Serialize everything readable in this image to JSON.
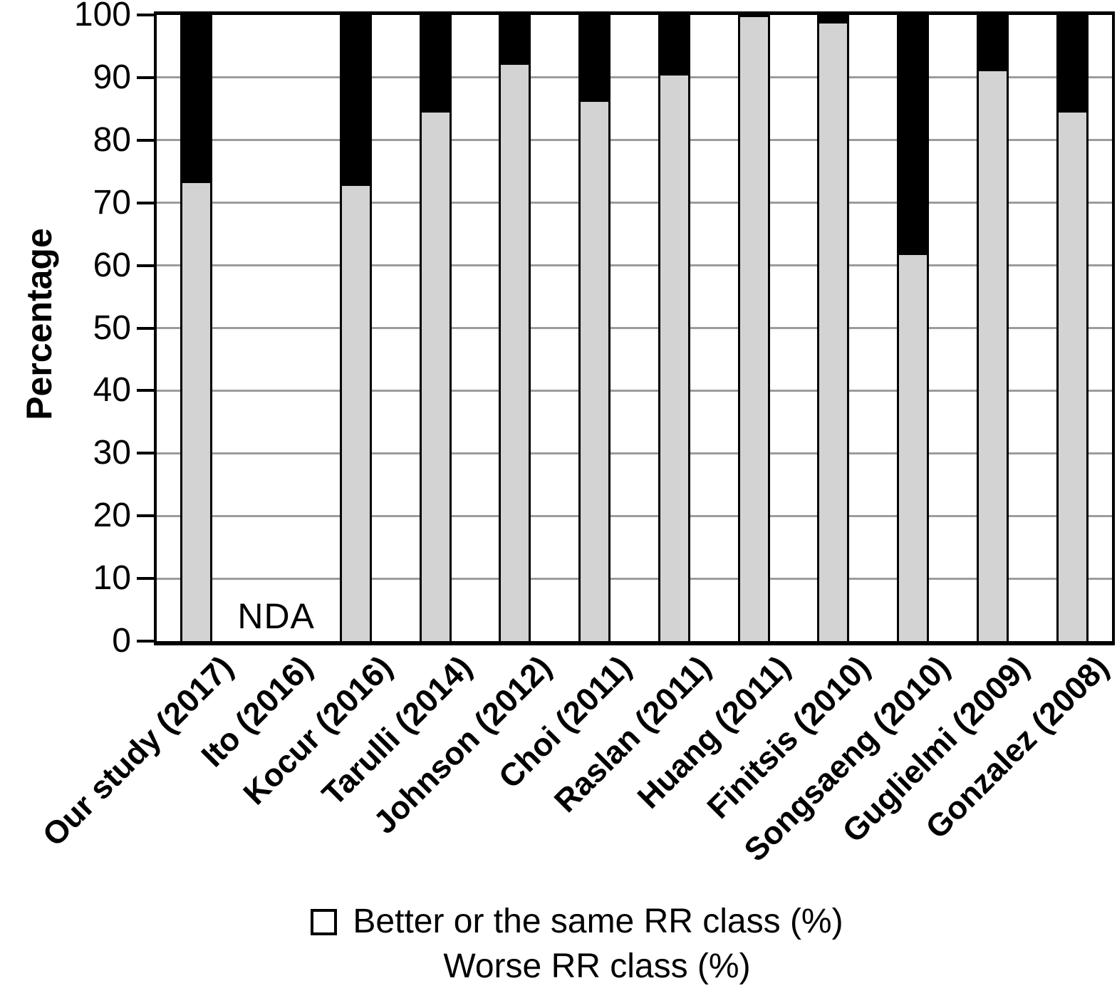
{
  "chart_data": {
    "type": "bar",
    "stacked": true,
    "orientation": "vertical",
    "title": "",
    "xlabel": "",
    "ylabel": "Percentage",
    "ylim": [
      0,
      100
    ],
    "yticks": [
      0,
      10,
      20,
      30,
      40,
      50,
      60,
      70,
      80,
      90,
      100
    ],
    "grid": "horizontal",
    "legend_position": "bottom",
    "no_data_label": "NDA",
    "no_data_category": "Ito (2016)",
    "categories": [
      "Our study (2017)",
      "Ito (2016)",
      "Kocur (2016)",
      "Tarulli (2014)",
      "Johnson (2012)",
      "Choi (2011)",
      "Raslan (2011)",
      "Huang (2011)",
      "Finitsis (2010)",
      "Songsaeng (2010)",
      "Guglielmi (2009)",
      "Gonzalez (2008)"
    ],
    "series": [
      {
        "name": "Better or the same RR class (%)",
        "color": "#d3d3d3",
        "values": [
          73.5,
          null,
          73,
          84.8,
          92.4,
          86.5,
          90.7,
          100,
          99,
          62,
          91.4,
          84.8
        ]
      },
      {
        "name": "Worse RR class (%)",
        "color": "#000000",
        "values": [
          26.5,
          null,
          27,
          15.2,
          7.6,
          13.5,
          9.3,
          0,
          1,
          38,
          8.6,
          15.2
        ]
      }
    ]
  },
  "colors": {
    "background": "#ffffff",
    "bar_fill": "#d3d3d3",
    "bar_outline": "#000000",
    "gridline": "#9c9c9c",
    "axis": "#000000",
    "text": "#000000"
  }
}
